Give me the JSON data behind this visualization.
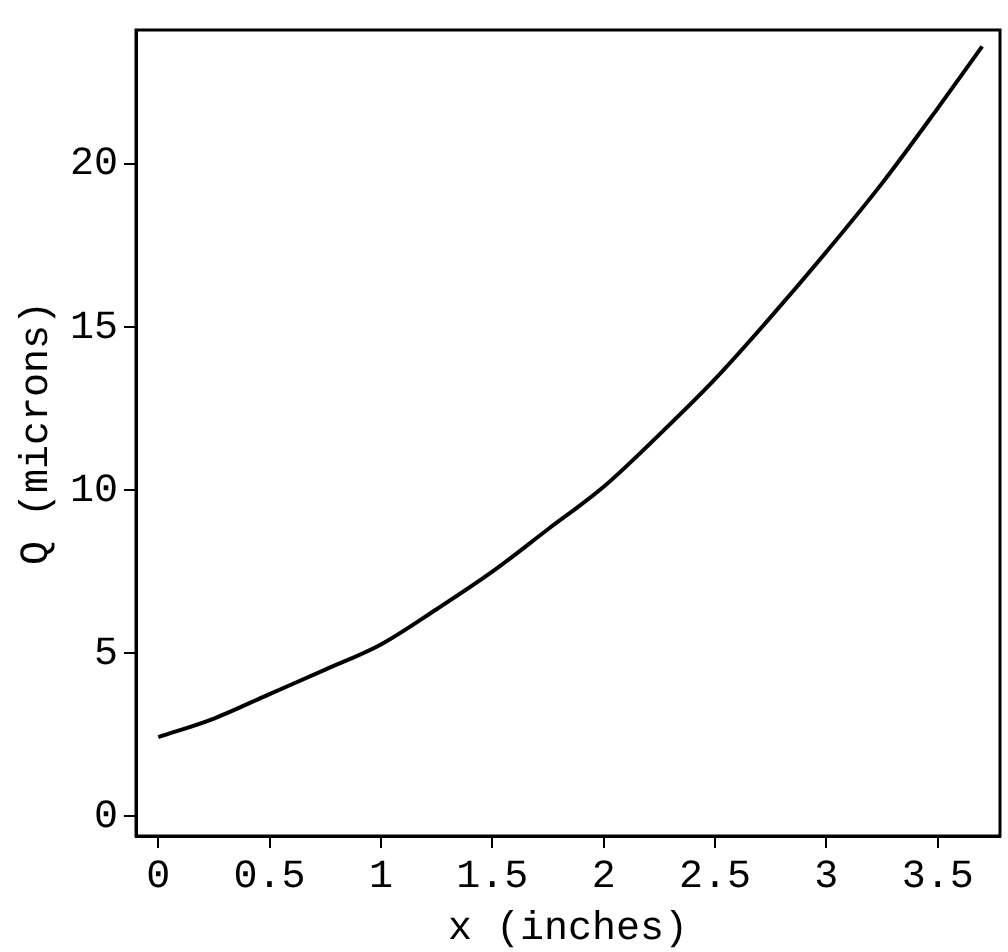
{
  "chart_data": {
    "type": "line",
    "xlabel": "x (inches)",
    "ylabel": "Q (microns)",
    "x": [
      0,
      0.25,
      0.5,
      0.75,
      1,
      1.25,
      1.5,
      1.75,
      2,
      2.25,
      2.5,
      2.75,
      3,
      3.25,
      3.5,
      3.7
    ],
    "series": [
      {
        "color": "#000000",
        "values": [
          2.43,
          3.0,
          3.75,
          4.5,
          5.27,
          6.35,
          7.5,
          8.8,
          10.1,
          11.7,
          13.4,
          15.3,
          17.3,
          19.4,
          21.7,
          23.6
        ]
      }
    ],
    "xlim": [
      -0.1,
      3.78
    ],
    "ylim": [
      -0.6,
      24.1
    ],
    "xticks": [
      0,
      0.5,
      1,
      1.5,
      2,
      2.5,
      3,
      3.5
    ],
    "yticks": [
      0,
      5,
      10,
      15,
      20
    ],
    "grid": false,
    "legend": false,
    "marker": "none",
    "line_style": "solid"
  }
}
